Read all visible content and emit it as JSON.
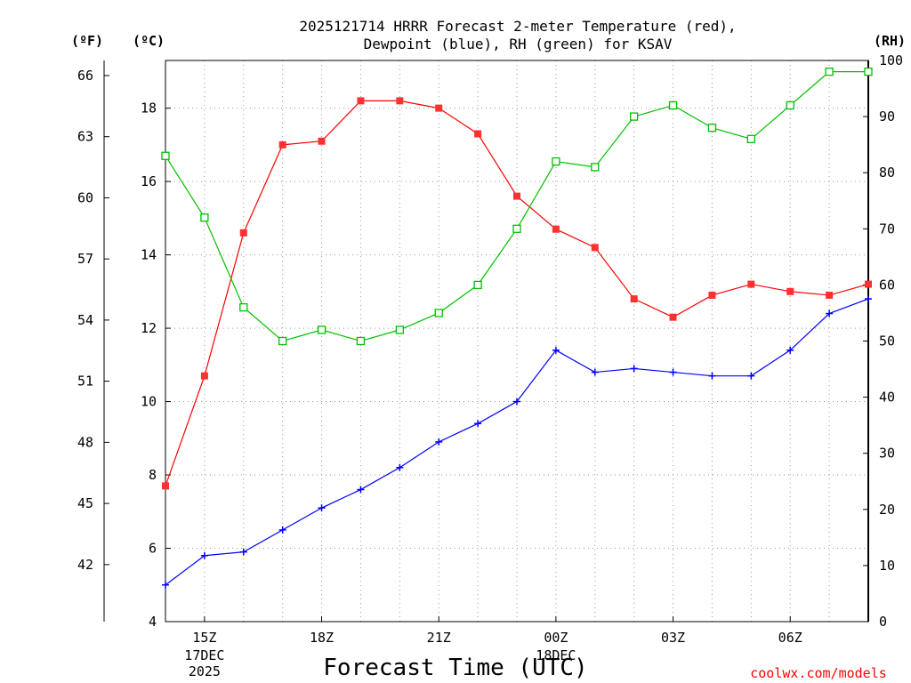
{
  "colors": {
    "temperature": "#ff0000",
    "dewpoint": "#0000ff",
    "rh": "#00c000",
    "marker_temp": "#ff3030",
    "grid": "#999999",
    "credit": "#ff0000"
  },
  "chart_data": {
    "type": "line",
    "title": "2025121714 HRRR Forecast 2-meter Temperature (red),",
    "subtitle": "Dewpoint (blue), RH (green) for KSAV",
    "xlabel": "Forecast Time (UTC)",
    "credit": "coolwx.com/models",
    "units": {
      "fahrenheit": "(ºF)",
      "celsius": "(ºC)",
      "rh": "(RH)"
    },
    "x": [
      "14Z",
      "15Z",
      "16Z",
      "17Z",
      "18Z",
      "19Z",
      "20Z",
      "21Z",
      "22Z",
      "23Z",
      "00Z",
      "01Z",
      "02Z",
      "03Z",
      "04Z",
      "05Z",
      "06Z",
      "07Z",
      "08Z"
    ],
    "xlim": [
      0,
      18
    ],
    "x_ticks": [
      {
        "x": 1,
        "label": "15Z"
      },
      {
        "x": 4,
        "label": "18Z"
      },
      {
        "x": 7,
        "label": "21Z"
      },
      {
        "x": 10,
        "label": "00Z"
      },
      {
        "x": 13,
        "label": "03Z"
      },
      {
        "x": 16,
        "label": "06Z"
      }
    ],
    "date_labels": [
      {
        "x": 1,
        "lines": [
          "17DEC",
          "2025"
        ]
      },
      {
        "x": 10,
        "lines": [
          "18DEC"
        ]
      }
    ],
    "y_celsius": {
      "lim": [
        4,
        19.3
      ],
      "ticks": [
        4,
        6,
        8,
        10,
        12,
        14,
        16,
        18
      ]
    },
    "y_fahrenheit": {
      "ticks": [
        42,
        45,
        48,
        51,
        54,
        57,
        60,
        63,
        66
      ]
    },
    "y_rh": {
      "lim": [
        0,
        100
      ],
      "ticks": [
        0,
        10,
        20,
        30,
        40,
        50,
        60,
        70,
        80,
        90,
        100
      ]
    },
    "series": [
      {
        "name": "Temperature",
        "key": "temp",
        "axis": "celsius",
        "values": [
          7.7,
          10.7,
          14.6,
          17.0,
          17.1,
          18.2,
          18.2,
          18.0,
          17.3,
          15.6,
          14.7,
          14.2,
          12.8,
          12.3,
          12.9,
          13.2,
          13.0,
          12.9,
          13.2
        ]
      },
      {
        "name": "Dewpoint",
        "key": "dewp",
        "axis": "celsius",
        "values": [
          5.0,
          5.8,
          5.9,
          6.5,
          7.1,
          7.6,
          8.2,
          8.9,
          9.4,
          10.0,
          11.4,
          10.8,
          10.9,
          10.8,
          10.7,
          10.7,
          11.4,
          12.4,
          12.8
        ]
      },
      {
        "name": "RH",
        "key": "rh",
        "axis": "rh",
        "values": [
          83,
          72,
          56,
          50,
          52,
          50,
          52,
          55,
          60,
          70,
          82,
          81,
          90,
          92,
          88,
          86,
          92,
          98,
          98
        ]
      }
    ]
  }
}
